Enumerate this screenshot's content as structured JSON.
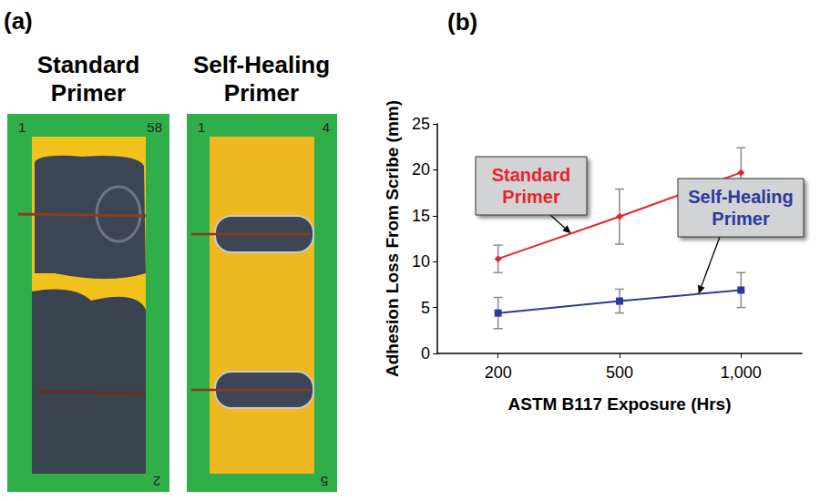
{
  "panel_a": {
    "label": "(a)",
    "photos": [
      {
        "title": "Standard Primer",
        "marks": [
          "1",
          "58",
          "2"
        ]
      },
      {
        "title": "Self-Healing Primer",
        "marks": [
          "1",
          "4",
          "5"
        ]
      }
    ]
  },
  "chart_data": {
    "type": "line",
    "title": "(b)",
    "x_label": "ASTM B117 Exposure (Hrs)",
    "y_label": "Adhesion Loss From Scribe (mm)",
    "categories": [
      "200",
      "500",
      "1,000"
    ],
    "ylim": [
      0,
      25
    ],
    "yticks": [
      0,
      5,
      10,
      15,
      20,
      25
    ],
    "grid": false,
    "series": [
      {
        "name": "Standard Primer",
        "color": "#e8242a",
        "marker": "diamond",
        "line_style": "solid",
        "values": [
          10.3,
          14.9,
          19.7
        ],
        "errors": [
          1.5,
          3.0,
          2.7
        ]
      },
      {
        "name": "Self-Healing Primer",
        "color": "#2b3a9e",
        "marker": "square",
        "line_style": "solid",
        "values": [
          4.4,
          5.7,
          6.9
        ],
        "errors": [
          1.7,
          1.3,
          1.9
        ]
      }
    ]
  }
}
